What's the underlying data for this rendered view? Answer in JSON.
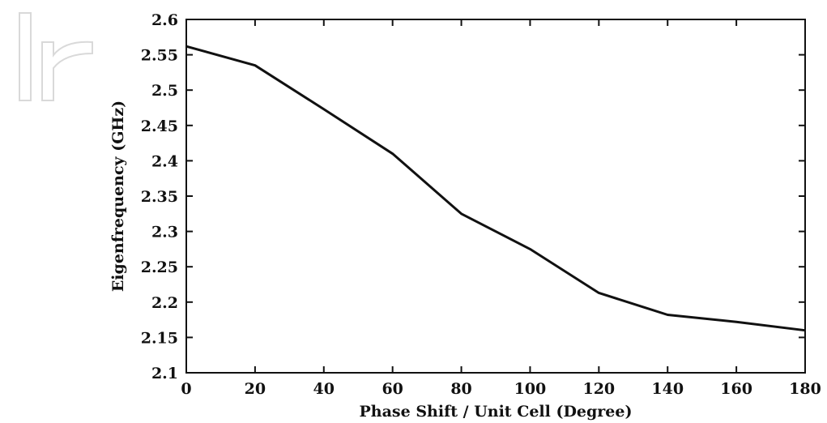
{
  "chart_data": {
    "type": "line",
    "title": "",
    "xlabel": "Phase Shift / Unit Cell (Degree)",
    "ylabel": "Eigenfrequency (GHz)",
    "xlim": [
      0,
      180
    ],
    "ylim": [
      2.1,
      2.6
    ],
    "xticks": [
      0,
      20,
      40,
      60,
      80,
      100,
      120,
      140,
      160,
      180
    ],
    "yticks": [
      "2.1",
      "2.15",
      "2.2",
      "2.25",
      "2.3",
      "2.35",
      "2.4",
      "2.45",
      "2.5",
      "2.55",
      "2.6"
    ],
    "grid": false,
    "legend": "none",
    "series": [
      {
        "x": [
          0,
          20,
          40,
          60,
          80,
          100,
          120,
          140,
          160,
          180
        ],
        "y": [
          2.562,
          2.535,
          2.473,
          2.41,
          2.325,
          2.275,
          2.213,
          2.182,
          2.172,
          2.16
        ],
        "color": "#111111"
      }
    ]
  },
  "watermark": {
    "icon": "intech-watermark-icon",
    "color": "#d9d9d9"
  }
}
